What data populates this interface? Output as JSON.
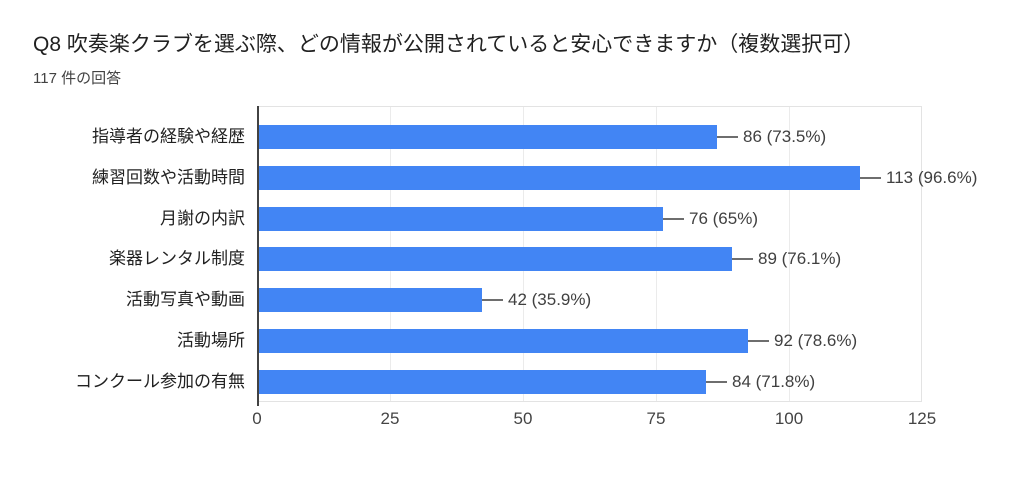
{
  "header": {
    "title": "Q8 吹奏楽クラブを選ぶ際、どの情報が公開されていると安心できますか（複数選択可）",
    "subtitle": "117 件の回答"
  },
  "chart_data": {
    "type": "bar",
    "orientation": "horizontal",
    "title": "Q8 吹奏楽クラブを選ぶ際、どの情報が公開されていると安心できますか（複数選択可）",
    "subtitle": "117 件の回答",
    "total_responses": 117,
    "categories": [
      "指導者の経験や経歴",
      "練習回数や活動時間",
      "月謝の内訳",
      "楽器レンタル制度",
      "活動写真や動画",
      "活動場所",
      "コンクール参加の有無"
    ],
    "values": [
      86,
      113,
      76,
      89,
      42,
      92,
      84
    ],
    "percent_labels": [
      "73.5%",
      "96.6%",
      "65%",
      "76.1%",
      "35.9%",
      "78.6%",
      "71.8%"
    ],
    "xlim": [
      0,
      125
    ],
    "x_ticks": [
      0,
      25,
      50,
      75,
      100,
      125
    ],
    "bar_color": "#4285f4",
    "grid": true,
    "legend": "none"
  }
}
